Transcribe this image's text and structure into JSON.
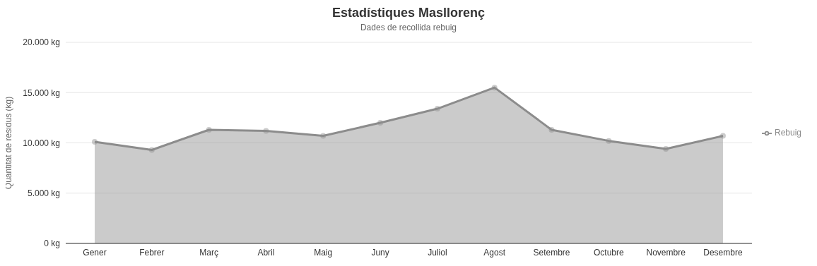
{
  "chart_data": {
    "type": "area",
    "title": "Estadístiques Masllorenç",
    "subtitle": "Dades de recollida rebuig",
    "ylabel": "Quantitat de residus (kg)",
    "categories": [
      "Gener",
      "Febrer",
      "Març",
      "Abril",
      "Maig",
      "Juny",
      "Juliol",
      "Agost",
      "Setembre",
      "Octubre",
      "Novembre",
      "Desembre"
    ],
    "series": [
      {
        "name": "Rebuig",
        "color": "#8c8c8c",
        "values": [
          10100,
          9300,
          11300,
          11200,
          10700,
          12000,
          13400,
          15500,
          11300,
          10200,
          9400,
          10700
        ]
      }
    ],
    "ylim": [
      0,
      20000
    ],
    "yticks": [
      {
        "value": 0,
        "label": "0 kg"
      },
      {
        "value": 5000,
        "label": "5.000 kg"
      },
      {
        "value": 10000,
        "label": "10.000 kg"
      },
      {
        "value": 15000,
        "label": "15.000 kg"
      },
      {
        "value": 20000,
        "label": "20.000 kg"
      }
    ],
    "grid": "y",
    "legend": "right",
    "marker": "circle"
  }
}
